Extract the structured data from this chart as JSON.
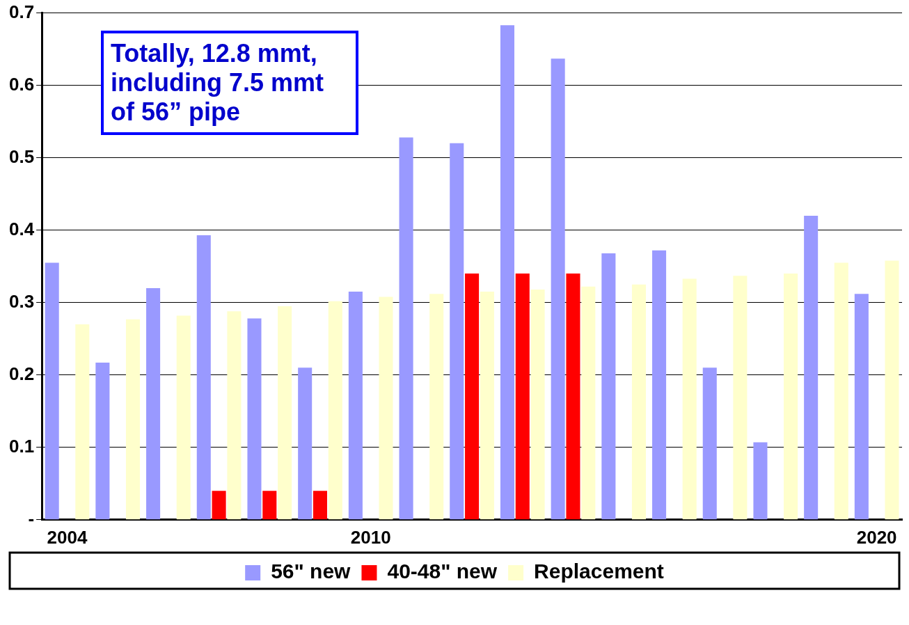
{
  "chart_data": {
    "type": "bar",
    "categories": [
      "2004",
      null,
      null,
      null,
      null,
      null,
      "2010",
      null,
      null,
      null,
      null,
      null,
      null,
      null,
      null,
      null,
      "2020"
    ],
    "series": [
      {
        "name": "56\" new",
        "color": "#9999ff",
        "values": [
          0.355,
          0.217,
          0.32,
          0.393,
          0.278,
          0.21,
          0.315,
          0.528,
          0.52,
          0.683,
          0.637,
          0.368,
          0.372,
          0.21,
          0.107,
          0.42,
          0.312
        ]
      },
      {
        "name": "40-48\" new",
        "color": "#ff0000",
        "values": [
          0,
          0,
          0,
          0.04,
          0.04,
          0.04,
          0,
          0,
          0.34,
          0.34,
          0.34,
          0,
          0,
          0,
          0,
          0,
          0
        ]
      },
      {
        "name": "Replacement",
        "color": "#ffffcc",
        "values": [
          0.27,
          0.277,
          0.282,
          0.288,
          0.295,
          0.302,
          0.308,
          0.312,
          0.315,
          0.318,
          0.322,
          0.325,
          0.333,
          0.337,
          0.34,
          0.355,
          0.358
        ]
      }
    ],
    "ylim": [
      0,
      0.7
    ],
    "yticks": [
      {
        "value": 0,
        "label": "-"
      },
      0.1,
      0.2,
      0.3,
      0.4,
      0.5,
      0.6,
      0.7
    ],
    "grid": "y",
    "legend": "bottom",
    "annotations": [
      "Totally, 12.8 mmt, including 7.5 mmt of 56” pipe"
    ]
  }
}
